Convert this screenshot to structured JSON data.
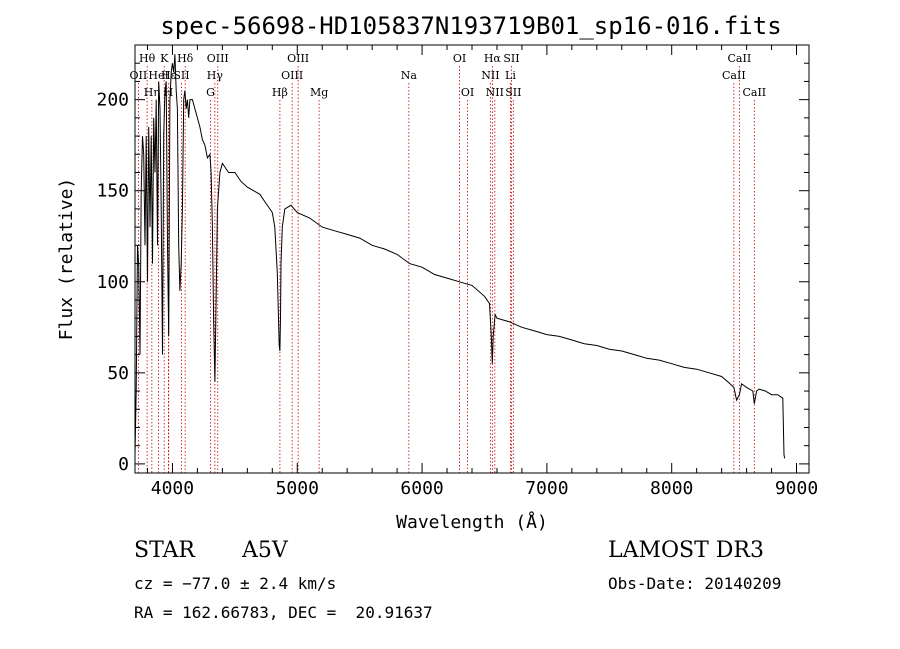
{
  "chart_data": {
    "type": "line",
    "title": "spec-56698-HD105837N193719B01_sp16-016.fits",
    "xlabel": "Wavelength (Å)",
    "ylabel": "Flux (relative)",
    "xlim": [
      3700,
      9100
    ],
    "ylim": [
      -5,
      230
    ],
    "xticks": [
      4000,
      5000,
      6000,
      7000,
      8000,
      9000
    ],
    "yticks": [
      0,
      50,
      100,
      150,
      200
    ],
    "line_color": "#000000",
    "marker_color": "#cc0000",
    "series": [
      {
        "name": "flux",
        "x": [
          3700,
          3710,
          3720,
          3730,
          3740,
          3750,
          3760,
          3770,
          3780,
          3790,
          3800,
          3810,
          3820,
          3830,
          3840,
          3850,
          3860,
          3870,
          3880,
          3890,
          3900,
          3910,
          3920,
          3930,
          3940,
          3950,
          3960,
          3970,
          3980,
          3990,
          4000,
          4010,
          4020,
          4030,
          4040,
          4050,
          4060,
          4070,
          4080,
          4090,
          4100,
          4110,
          4120,
          4130,
          4140,
          4160,
          4180,
          4200,
          4220,
          4240,
          4260,
          4280,
          4300,
          4310,
          4320,
          4330,
          4340,
          4350,
          4360,
          4380,
          4400,
          4450,
          4500,
          4550,
          4600,
          4650,
          4700,
          4750,
          4780,
          4800,
          4820,
          4840,
          4850,
          4855,
          4861,
          4866,
          4870,
          4880,
          4900,
          4950,
          5000,
          5100,
          5200,
          5300,
          5400,
          5500,
          5600,
          5700,
          5800,
          5900,
          6000,
          6100,
          6200,
          6300,
          6400,
          6500,
          6540,
          6555,
          6563,
          6570,
          6585,
          6600,
          6700,
          6800,
          6900,
          7000,
          7100,
          7200,
          7300,
          7400,
          7500,
          7600,
          7700,
          7800,
          7900,
          8000,
          8100,
          8200,
          8300,
          8400,
          8450,
          8498,
          8520,
          8542,
          8560,
          8600,
          8650,
          8662,
          8680,
          8700,
          8750,
          8800,
          8850,
          8890,
          8900,
          8905
        ],
        "y": [
          5,
          40,
          120,
          110,
          60,
          150,
          180,
          170,
          120,
          180,
          100,
          185,
          130,
          180,
          110,
          190,
          160,
          200,
          120,
          210,
          195,
          140,
          60,
          180,
          205,
          210,
          120,
          70,
          200,
          215,
          220,
          215,
          225,
          205,
          195,
          120,
          95,
          110,
          140,
          200,
          205,
          195,
          200,
          190,
          200,
          200,
          195,
          190,
          185,
          178,
          175,
          168,
          170,
          160,
          130,
          80,
          45,
          90,
          140,
          160,
          165,
          160,
          160,
          155,
          152,
          150,
          148,
          143,
          140,
          138,
          130,
          105,
          80,
          65,
          62,
          80,
          110,
          130,
          140,
          142,
          138,
          135,
          130,
          128,
          126,
          124,
          120,
          118,
          115,
          110,
          108,
          104,
          102,
          100,
          98,
          92,
          88,
          70,
          55,
          70,
          82,
          80,
          78,
          75,
          73,
          71,
          70,
          68,
          66,
          65,
          63,
          62,
          60,
          58,
          57,
          55,
          53,
          52,
          50,
          48,
          45,
          42,
          35,
          38,
          44,
          42,
          40,
          33,
          40,
          41,
          40,
          38,
          38,
          36,
          5,
          3
        ]
      }
    ],
    "line_markers": [
      {
        "label": "Hθ",
        "x": 3797,
        "row": 1
      },
      {
        "label": "OII",
        "x": 3727,
        "row": 2
      },
      {
        "label": "Hη",
        "x": 3835,
        "row": 3
      },
      {
        "label": "HeI",
        "x": 3889,
        "row": 2
      },
      {
        "label": "K",
        "x": 3934,
        "row": 1
      },
      {
        "label": "H",
        "x": 3968,
        "row": 3
      },
      {
        "label": "Hε",
        "x": 3970,
        "row": 2
      },
      {
        "label": "SII",
        "x": 4072,
        "row": 2
      },
      {
        "label": "Hδ",
        "x": 4102,
        "row": 1
      },
      {
        "label": "OIII",
        "x": 4363,
        "row": 1
      },
      {
        "label": "Hγ",
        "x": 4340,
        "row": 2
      },
      {
        "label": "G",
        "x": 4305,
        "row": 3
      },
      {
        "label": "Hβ",
        "x": 4861,
        "row": 3
      },
      {
        "label": "OIII",
        "x": 5007,
        "row": 1
      },
      {
        "label": "OIII",
        "x": 4959,
        "row": 2
      },
      {
        "label": "Mg",
        "x": 5175,
        "row": 3
      },
      {
        "label": "Na",
        "x": 5894,
        "row": 2
      },
      {
        "label": "OI",
        "x": 6300,
        "row": 1
      },
      {
        "label": "OI",
        "x": 6364,
        "row": 3
      },
      {
        "label": "Hα",
        "x": 6563,
        "row": 1
      },
      {
        "label": "NII",
        "x": 6548,
        "row": 2
      },
      {
        "label": "NII",
        "x": 6583,
        "row": 3
      },
      {
        "label": "Li",
        "x": 6708,
        "row": 2
      },
      {
        "label": "SII",
        "x": 6716,
        "row": 1
      },
      {
        "label": "SII",
        "x": 6731,
        "row": 3
      },
      {
        "label": "CaII",
        "x": 8542,
        "row": 1
      },
      {
        "label": "CaII",
        "x": 8498,
        "row": 2
      },
      {
        "label": "CaII",
        "x": 8662,
        "row": 3
      }
    ]
  },
  "info": {
    "class_label": "STAR",
    "subclass": "A5V",
    "survey": "LAMOST DR3",
    "cz": "cz = −77.0 ± 2.4 km/s",
    "obs_date": "Obs-Date: 20140209",
    "coords": "RA = 162.66783, DEC =  20.91637"
  }
}
